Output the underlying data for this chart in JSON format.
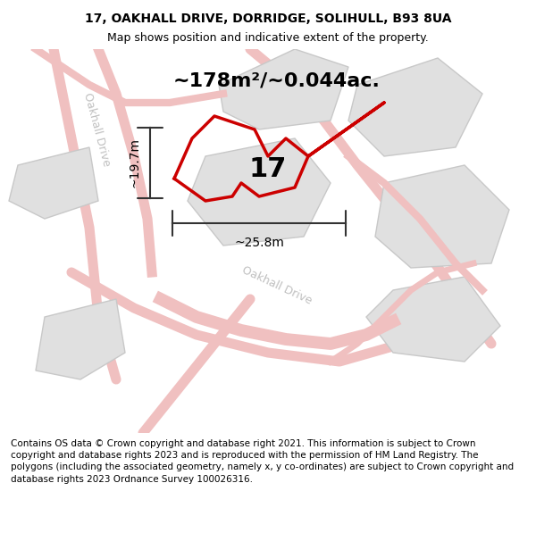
{
  "title_line1": "17, OAKHALL DRIVE, DORRIDGE, SOLIHULL, B93 8UA",
  "title_line2": "Map shows position and indicative extent of the property.",
  "area_text": "~178m²/~0.044ac.",
  "number_label": "17",
  "dim_width": "~25.8m",
  "dim_height": "~19.7m",
  "road_label_left": "Oakhall Drive",
  "road_label_bottom": "Oakhall Drive",
  "footer_text": "Contains OS data © Crown copyright and database right 2021. This information is subject to Crown copyright and database rights 2023 and is reproduced with the permission of HM Land Registry. The polygons (including the associated geometry, namely x, y co-ordinates) are subject to Crown copyright and database rights 2023 Ordnance Survey 100026316.",
  "bg_color": "#f5f5f5",
  "map_bg": "#ffffff",
  "road_color": "#f0c0c0",
  "parcel_fill": "#e8e8e8",
  "parcel_edge": "#c0c0c0",
  "highlight_color": "#cc0000",
  "dim_color": "#333333",
  "text_color": "#333333",
  "road_text_color": "#c0c0c0",
  "title_fontsize": 10,
  "subtitle_fontsize": 9,
  "area_fontsize": 16,
  "number_fontsize": 22,
  "dim_fontsize": 10,
  "footer_fontsize": 7.5
}
